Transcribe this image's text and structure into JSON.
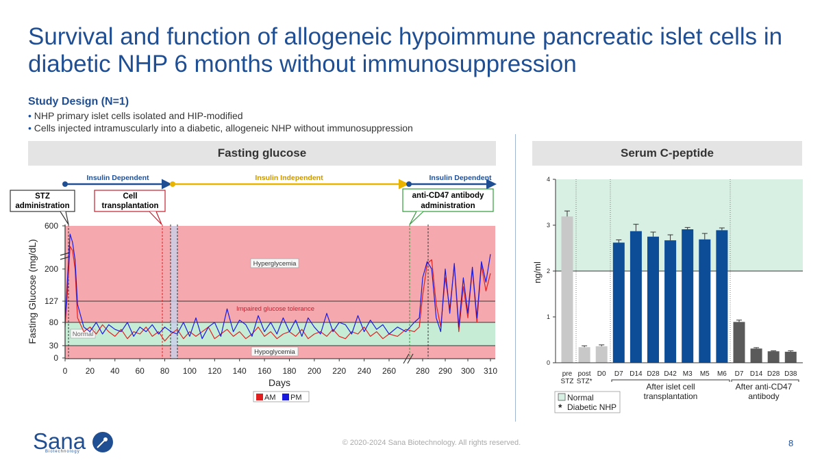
{
  "title": "Survival and function of allogeneic hypoimmune pancreatic islet cells in diabetic NHP 6 months without immunosuppression",
  "study_design": {
    "heading": "Study Design (N=1)",
    "bullets": [
      "NHP primary islet cells isolated and HIP-modified",
      "Cells injected intramuscularly into a diabetic, allogeneic NHP without immunosuppression"
    ]
  },
  "left_panel": {
    "heading": "Fasting glucose",
    "phases": [
      "Insulin Dependent",
      "Insulin Independent",
      "Insulin Dependent"
    ],
    "callouts": {
      "stz": [
        "STZ",
        "administration"
      ],
      "cell": [
        "Cell",
        "transplantation"
      ],
      "cd47": [
        "anti-CD47 antibody",
        "administration"
      ]
    },
    "zones": {
      "hyper": "Hyperglycemia",
      "impaired": "Impaired glucose tolerance",
      "normal": "Normal",
      "hypo": "Hypoglycemia"
    },
    "legend": {
      "am": "AM",
      "pm": "PM"
    }
  },
  "right_panel": {
    "heading": "Serum C-peptide",
    "group_labels": {
      "islet": [
        "After islet cell",
        "transplantation"
      ],
      "cd47": [
        "After anti-CD47",
        "antibody"
      ]
    },
    "legend": {
      "normal": "Normal",
      "diabetic_marker": "*",
      "diabetic": "Diabetic NHP"
    }
  },
  "chart_data": [
    {
      "type": "line",
      "title": "Fasting glucose",
      "xlabel": "Days",
      "ylabel": "Fasting Glucose (mg/dL)",
      "x_ticks": [
        "0",
        "20",
        "40",
        "60",
        "80",
        "100",
        "120",
        "140",
        "160",
        "180",
        "200",
        "220",
        "240",
        "260",
        "280",
        "290",
        "300",
        "310"
      ],
      "y_ticks": [
        "0",
        "30",
        "80",
        "127",
        "200",
        "600"
      ],
      "xlim": [
        0,
        310
      ],
      "axis_breaks": {
        "x": "between 260 and 280",
        "y": "between 200 and 600"
      },
      "thresholds_mg_dl": {
        "hypoglycemia_max": 30,
        "normal_max": 80,
        "impaired_max": 127
      },
      "events_day": {
        "stz": 3,
        "cell_transplantation": 78,
        "anti_cd47": 277
      },
      "series": [
        {
          "name": "AM",
          "color": "#e02020",
          "x": [
            0,
            2,
            4,
            6,
            8,
            10,
            15,
            20,
            25,
            30,
            35,
            40,
            45,
            50,
            55,
            60,
            65,
            70,
            75,
            80,
            85,
            90,
            95,
            100,
            105,
            110,
            115,
            120,
            125,
            130,
            135,
            140,
            145,
            150,
            155,
            160,
            165,
            170,
            175,
            180,
            185,
            190,
            195,
            200,
            205,
            210,
            215,
            220,
            225,
            230,
            235,
            240,
            245,
            250,
            255,
            260,
            265,
            270,
            275,
            278,
            280,
            282,
            284,
            286,
            288,
            290,
            292,
            294,
            296,
            298,
            300,
            302,
            304,
            306,
            308,
            310
          ],
          "y": [
            70,
            150,
            350,
            300,
            200,
            90,
            60,
            70,
            55,
            75,
            60,
            50,
            65,
            45,
            60,
            55,
            70,
            50,
            60,
            40,
            55,
            65,
            45,
            60,
            50,
            60,
            70,
            45,
            55,
            65,
            50,
            60,
            45,
            55,
            70,
            50,
            60,
            45,
            55,
            60,
            50,
            65,
            45,
            55,
            60,
            50,
            65,
            50,
            45,
            60,
            55,
            70,
            50,
            60,
            45,
            55,
            50,
            65,
            60,
            70,
            140,
            230,
            250,
            120,
            70,
            180,
            110,
            220,
            60,
            160,
            90,
            200,
            80,
            220,
            150,
            190
          ]
        },
        {
          "name": "PM",
          "color": "#1a1adc",
          "x": [
            0,
            2,
            4,
            6,
            8,
            10,
            15,
            20,
            25,
            30,
            35,
            40,
            45,
            50,
            55,
            60,
            65,
            70,
            75,
            80,
            85,
            90,
            95,
            100,
            105,
            110,
            115,
            120,
            125,
            130,
            135,
            140,
            145,
            150,
            155,
            160,
            165,
            170,
            175,
            180,
            185,
            190,
            195,
            200,
            205,
            210,
            215,
            220,
            225,
            230,
            235,
            240,
            245,
            250,
            255,
            260,
            265,
            270,
            275,
            278,
            280,
            282,
            284,
            286,
            288,
            290,
            292,
            294,
            296,
            298,
            300,
            302,
            304,
            306,
            308,
            310
          ],
          "y": [
            80,
            180,
            500,
            400,
            250,
            120,
            70,
            60,
            80,
            55,
            75,
            65,
            60,
            80,
            50,
            70,
            60,
            75,
            55,
            70,
            60,
            55,
            80,
            50,
            90,
            45,
            70,
            80,
            50,
            110,
            60,
            85,
            75,
            50,
            95,
            60,
            80,
            55,
            90,
            60,
            85,
            50,
            90,
            70,
            55,
            100,
            60,
            80,
            75,
            55,
            95,
            60,
            85,
            65,
            75,
            55,
            70,
            60,
            80,
            90,
            180,
            240,
            200,
            90,
            60,
            200,
            100,
            230,
            70,
            180,
            100,
            210,
            90,
            240,
            170,
            280
          ]
        }
      ]
    },
    {
      "type": "bar",
      "title": "Serum C-peptide",
      "ylabel": "ng/ml",
      "ylim": [
        0,
        4
      ],
      "y_ticks": [
        "0",
        "1",
        "2",
        "3",
        "4"
      ],
      "normal_range": [
        2,
        4
      ],
      "categories": [
        "pre STZ",
        "post STZ*",
        "D0",
        "D7",
        "D14",
        "D28",
        "D42",
        "M3",
        "M5",
        "M6",
        "D7",
        "D14",
        "D28",
        "D38"
      ],
      "values": [
        3.19,
        0.34,
        0.36,
        2.62,
        2.87,
        2.75,
        2.67,
        2.91,
        2.69,
        2.89,
        0.89,
        0.31,
        0.25,
        0.24
      ],
      "errors": [
        0.12,
        0.03,
        0.03,
        0.06,
        0.15,
        0.1,
        0.12,
        0.04,
        0.13,
        0.05,
        0.04,
        0.02,
        0.01,
        0.02
      ],
      "groups": [
        "control",
        "control",
        "control",
        "islet",
        "islet",
        "islet",
        "islet",
        "islet",
        "islet",
        "islet",
        "cd47",
        "cd47",
        "cd47",
        "cd47"
      ],
      "colors": {
        "control": "#c8c8c8",
        "islet": "#0d4c96",
        "cd47": "#5a5a5a"
      }
    }
  ],
  "footer": "© 2020-2024 Sana Biotechnology. All rights reserved.",
  "page_number": "8",
  "logo": {
    "name": "Sana",
    "sub": "Biotechnology"
  }
}
